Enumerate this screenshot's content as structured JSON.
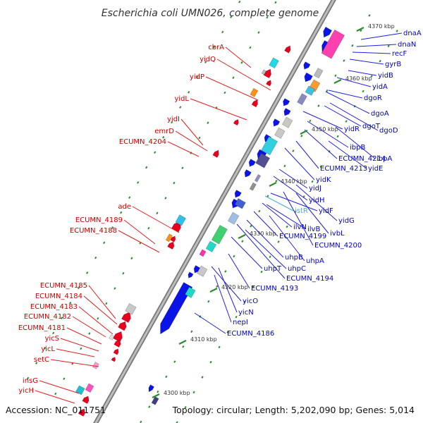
{
  "header": {
    "title": "Escherichia coli UMN026, complete genome"
  },
  "footer": {
    "accession": "Accession: NC_011751",
    "summary": "Topology: circular; Length: 5,202,090 bp; Genes: 5,014"
  },
  "colors": {
    "forward_strand": "#e8001c",
    "reverse_strand": "#0a14e6",
    "rna": "#40b0e0",
    "backbone": "#999999",
    "tick": "#2e8b2e"
  },
  "scale_ticks": [
    {
      "label": "4370 kbp"
    },
    {
      "label": "4360 kbp"
    },
    {
      "label": "4350 kbp"
    },
    {
      "label": "4340 kbp"
    },
    {
      "label": "4330 kbp"
    },
    {
      "label": "4320 kbp"
    },
    {
      "label": "4310 kbp"
    },
    {
      "label": "4300 kbp"
    }
  ],
  "left_labels": [
    {
      "name": "cbrA"
    },
    {
      "name": "yidQ"
    },
    {
      "name": "yidP"
    },
    {
      "name": "yidL"
    },
    {
      "name": "yidI"
    },
    {
      "name": "emrD"
    },
    {
      "name": "ECUMN_4204"
    },
    {
      "name": "ade"
    },
    {
      "name": "ECUMN_4189"
    },
    {
      "name": "ECUMN_4188"
    },
    {
      "name": "ECUMN_4185"
    },
    {
      "name": "ECUMN_4184"
    },
    {
      "name": "ECUMN_4183"
    },
    {
      "name": "ECUMN_4182"
    },
    {
      "name": "ECUMN_4181"
    },
    {
      "name": "yicS"
    },
    {
      "name": "yicL"
    },
    {
      "name": "setC"
    },
    {
      "name": "insG"
    },
    {
      "name": "yicH"
    }
  ],
  "right_labels": [
    {
      "name": "dnaA"
    },
    {
      "name": "dnaN"
    },
    {
      "name": "recF"
    },
    {
      "name": "gyrB"
    },
    {
      "name": "yidB"
    },
    {
      "name": "yidA"
    },
    {
      "name": "dgoR"
    },
    {
      "name": "dgoA"
    },
    {
      "name": "dgoT"
    },
    {
      "name": "dgoD"
    },
    {
      "name": "yidR"
    },
    {
      "name": "ibpB"
    },
    {
      "name": "ECUMN_4214"
    },
    {
      "name": "ibpA"
    },
    {
      "name": "ECUMN_4213"
    },
    {
      "name": "yidE"
    },
    {
      "name": "yidK"
    },
    {
      "name": "yidJ"
    },
    {
      "name": "yidH"
    },
    {
      "name": "istR"
    },
    {
      "name": "yidF"
    },
    {
      "name": "yidG"
    },
    {
      "name": "ilvN"
    },
    {
      "name": "ilvB"
    },
    {
      "name": "ivbL"
    },
    {
      "name": "ECUMN_4199"
    },
    {
      "name": "ECUMN_4200"
    },
    {
      "name": "uhpB"
    },
    {
      "name": "uhpA"
    },
    {
      "name": "uhpC"
    },
    {
      "name": "uhpT"
    },
    {
      "name": "ECUMN_4194"
    },
    {
      "name": "ECUMN_4193"
    },
    {
      "name": "yicO"
    },
    {
      "name": "yicN"
    },
    {
      "name": "nepI"
    },
    {
      "name": "ECUMN_4186"
    }
  ]
}
